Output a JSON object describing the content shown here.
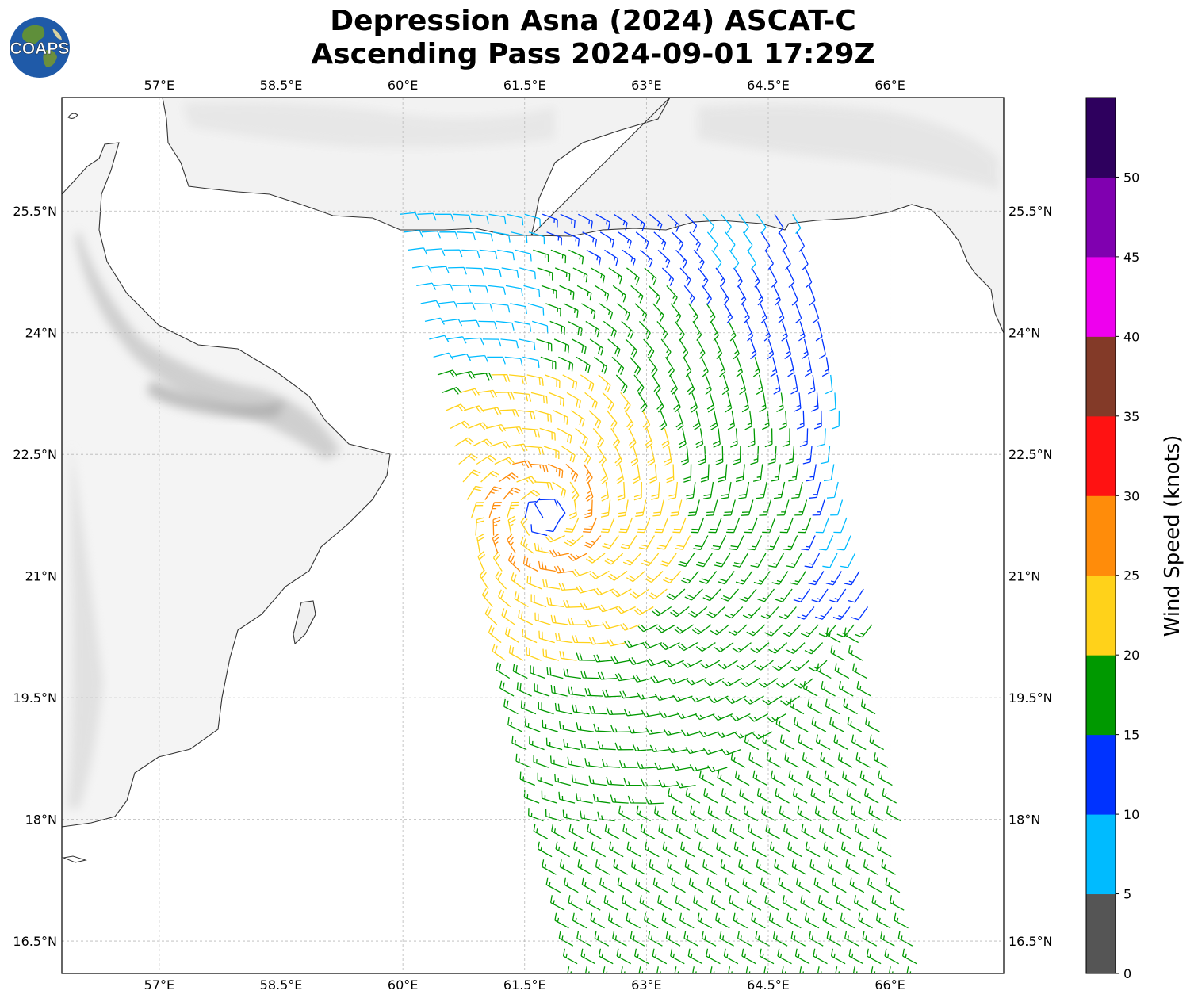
{
  "title": {
    "line1": "Depression Asna (2024) ASCAT-C",
    "line2": "Ascending Pass 2024-09-01 17:29Z"
  },
  "logo": {
    "text": "COAPS"
  },
  "map": {
    "lon_range": [
      55.8,
      67.4
    ],
    "lat_range": [
      16.1,
      26.9
    ],
    "lon_ticks": [
      {
        "value": 57,
        "label": "57°E"
      },
      {
        "value": 58.5,
        "label": "58.5°E"
      },
      {
        "value": 60,
        "label": "60°E"
      },
      {
        "value": 61.5,
        "label": "61.5°E"
      },
      {
        "value": 63,
        "label": "63°E"
      },
      {
        "value": 64.5,
        "label": "64.5°E"
      },
      {
        "value": 66,
        "label": "66°E"
      }
    ],
    "lat_ticks": [
      {
        "value": 25.5,
        "label": "25.5°N"
      },
      {
        "value": 24,
        "label": "24°N"
      },
      {
        "value": 22.5,
        "label": "22.5°N"
      },
      {
        "value": 21,
        "label": "21°N"
      },
      {
        "value": 19.5,
        "label": "19.5°N"
      },
      {
        "value": 18,
        "label": "18°N"
      },
      {
        "value": 16.5,
        "label": "16.5°N"
      }
    ],
    "grid": true
  },
  "chart_data": {
    "type": "wind-barbs",
    "center": {
      "lon": 61.75,
      "lat": 21.75
    },
    "swath": "ascending pass, east of 60°E",
    "units": "knots"
  },
  "colorbar": {
    "label": "Wind Speed (knots)",
    "bins": [
      {
        "from": 0,
        "to": 5,
        "color": "#555555"
      },
      {
        "from": 5,
        "to": 10,
        "color": "#00bbff"
      },
      {
        "from": 10,
        "to": 15,
        "color": "#0033ff"
      },
      {
        "from": 15,
        "to": 20,
        "color": "#009900"
      },
      {
        "from": 20,
        "to": 25,
        "color": "#ffd21a"
      },
      {
        "from": 25,
        "to": 30,
        "color": "#ff8c0a"
      },
      {
        "from": 30,
        "to": 35,
        "color": "#ff1212"
      },
      {
        "from": 35,
        "to": 40,
        "color": "#833a28"
      },
      {
        "from": 40,
        "to": 45,
        "color": "#ee00ee"
      },
      {
        "from": 45,
        "to": 50,
        "color": "#8000b0"
      },
      {
        "from": 50,
        "to": 55,
        "color": "#2e005e"
      }
    ],
    "tick_labels": [
      "0",
      "5",
      "10",
      "15",
      "20",
      "25",
      "30",
      "35",
      "40",
      "45",
      "50"
    ]
  }
}
